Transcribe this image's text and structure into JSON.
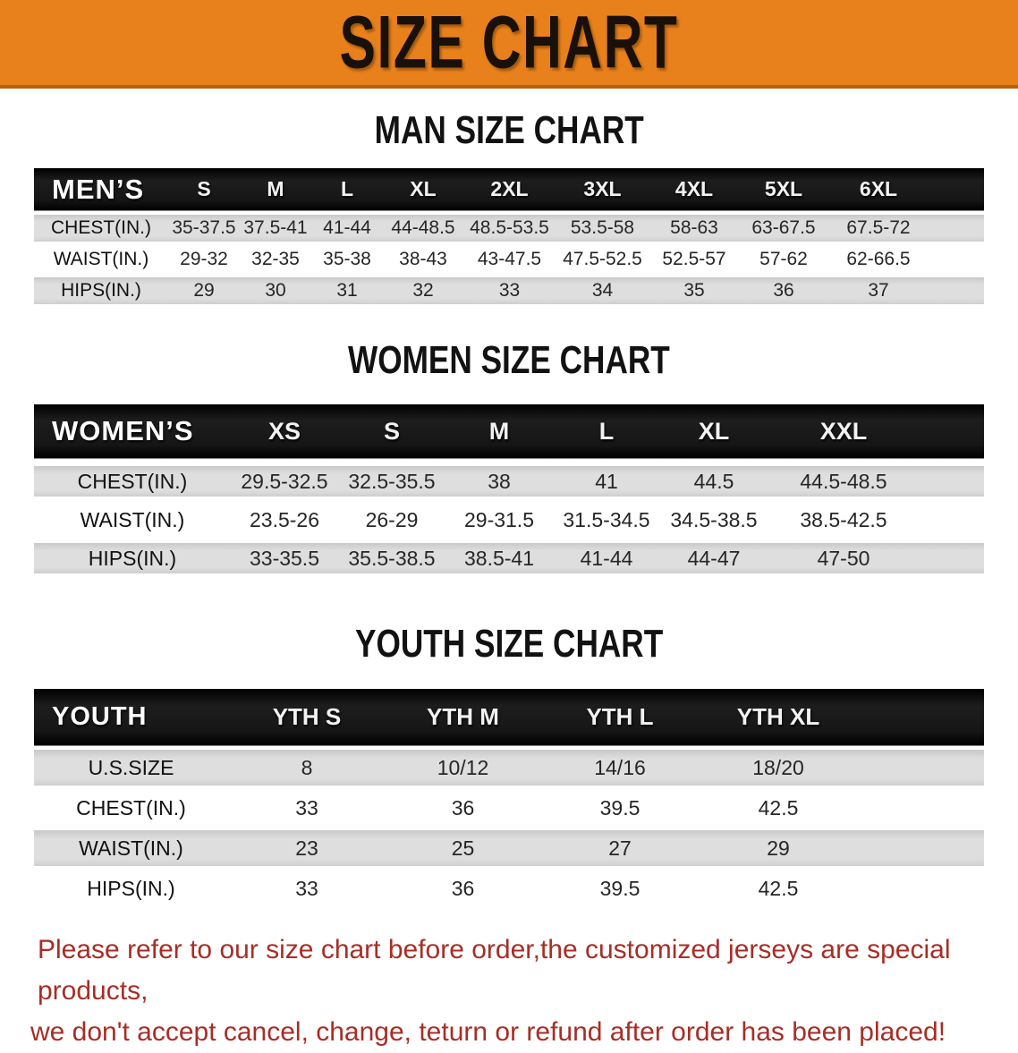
{
  "banner": {
    "title": "SIZE CHART",
    "bg_color": "#E8811B",
    "text_color": "#19100a"
  },
  "sections": [
    {
      "heading": "MAN SIZE CHART",
      "label": "MEN’S",
      "columns": [
        "S",
        "M",
        "L",
        "XL",
        "2XL",
        "3XL",
        "4XL",
        "5XL",
        "6XL"
      ],
      "rows": [
        {
          "label": "CHEST(IN.)",
          "values": [
            "35-37.5",
            "37.5-41",
            "41-44",
            "44-48.5",
            "48.5-53.5",
            "53.5-58",
            "58-63",
            "63-67.5",
            "67.5-72"
          ]
        },
        {
          "label": "WAIST(IN.)",
          "values": [
            "29-32",
            "32-35",
            "35-38",
            "38-43",
            "43-47.5",
            "47.5-52.5",
            "52.5-57",
            "57-62",
            "62-66.5"
          ]
        },
        {
          "label": "HIPS(IN.)",
          "values": [
            "29",
            "30",
            "31",
            "32",
            "33",
            "34",
            "35",
            "36",
            "37"
          ]
        }
      ]
    },
    {
      "heading": "WOMEN SIZE CHART",
      "label": "WOMEN’S",
      "columns": [
        "XS",
        "S",
        "M",
        "L",
        "XL",
        "XXL"
      ],
      "rows": [
        {
          "label": "CHEST(IN.)",
          "values": [
            "29.5-32.5",
            "32.5-35.5",
            "38",
            "41",
            "44.5",
            "44.5-48.5"
          ]
        },
        {
          "label": "WAIST(IN.)",
          "values": [
            "23.5-26",
            "26-29",
            "29-31.5",
            "31.5-34.5",
            "34.5-38.5",
            "38.5-42.5"
          ]
        },
        {
          "label": "HIPS(IN.)",
          "values": [
            "33-35.5",
            "35.5-38.5",
            "38.5-41",
            "41-44",
            "44-47",
            "47-50"
          ]
        }
      ]
    },
    {
      "heading": "YOUTH SIZE CHART",
      "label": "YOUTH",
      "columns": [
        "YTH S",
        "YTH M",
        "YTH L",
        "YTH XL"
      ],
      "rows": [
        {
          "label": "U.S.SIZE",
          "values": [
            "8",
            "10/12",
            "14/16",
            "18/20"
          ]
        },
        {
          "label": "CHEST(IN.)",
          "values": [
            "33",
            "36",
            "39.5",
            "42.5"
          ]
        },
        {
          "label": "WAIST(IN.)",
          "values": [
            "23",
            "25",
            "27",
            "29"
          ]
        },
        {
          "label": "HIPS(IN.)",
          "values": [
            "33",
            "36",
            "39.5",
            "42.5"
          ]
        }
      ]
    }
  ],
  "footer": {
    "line1": "Please refer to our size chart before order,the customized jerseys are special products,",
    "line2": "we don't accept cancel, change, teturn or refund after order has been placed!",
    "text_color": "#A72E26"
  },
  "table_colors": {
    "header_bar": "#161616",
    "shaded_row": "#dedede",
    "plain_row": "#ffffff"
  }
}
